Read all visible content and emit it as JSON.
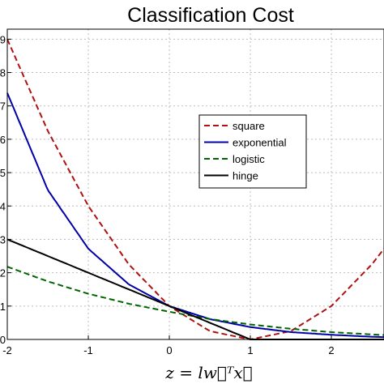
{
  "chart_data": {
    "type": "line",
    "title": "Classification Cost",
    "xlabel": "z = lw⃗ᵀx⃗",
    "ylabel": "",
    "xlim": [
      -2,
      2.65
    ],
    "ylim": [
      0,
      9.3
    ],
    "x_ticks": [
      -2,
      -1,
      0,
      1,
      2
    ],
    "x_tick_labels": [
      "-2",
      "-1",
      "0",
      "1",
      "2"
    ],
    "y_ticks": [
      0,
      1,
      2,
      3,
      4,
      5,
      6,
      7,
      8,
      9
    ],
    "y_tick_labels": [
      "0",
      "1",
      "2",
      "3",
      "4",
      "5",
      "6",
      "7",
      "8",
      "9"
    ],
    "grid": true,
    "legend_position": "upper-right",
    "series": [
      {
        "name": "square",
        "color": "#b01010",
        "style": "dashed",
        "x": [
          -2,
          -1.5,
          -1,
          -0.5,
          0,
          0.5,
          1,
          1.5,
          2,
          2.5,
          2.65
        ],
        "y": [
          9,
          6.25,
          4,
          2.25,
          1,
          0.25,
          0,
          0.25,
          1,
          2.25,
          2.72
        ]
      },
      {
        "name": "exponential",
        "color": "#0000a8",
        "style": "solid",
        "x": [
          -2,
          -1.5,
          -1,
          -0.5,
          0,
          0.5,
          1,
          1.5,
          2,
          2.5,
          2.65
        ],
        "y": [
          7.39,
          4.48,
          2.72,
          1.65,
          1,
          0.61,
          0.37,
          0.22,
          0.14,
          0.08,
          0.07
        ]
      },
      {
        "name": "logistic",
        "color": "#006400",
        "style": "dashed",
        "x": [
          -2,
          -1.5,
          -1,
          -0.5,
          0,
          0.5,
          1,
          1.5,
          2,
          2.5,
          2.65
        ],
        "y": [
          2.18,
          1.74,
          1.37,
          1.07,
          0.83,
          0.61,
          0.45,
          0.32,
          0.22,
          0.15,
          0.13
        ]
      },
      {
        "name": "hinge",
        "color": "#000000",
        "style": "solid",
        "x": [
          -2,
          -1.5,
          -1,
          -0.5,
          0,
          0.5,
          1,
          1.5,
          2,
          2.5,
          2.65
        ],
        "y": [
          3,
          2.5,
          2,
          1.5,
          1,
          0.5,
          0,
          0,
          0,
          0,
          0
        ]
      }
    ]
  }
}
